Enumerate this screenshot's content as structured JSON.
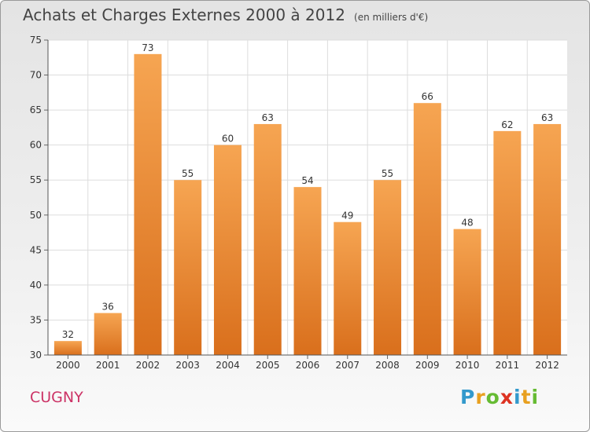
{
  "title": "Achats et Charges Externes 2000 à 2012",
  "unit_label": "(en milliers d'€)",
  "commune": "CUGNY",
  "brand": {
    "letters": [
      "P",
      "r",
      "o",
      "x",
      "i",
      "t",
      "i"
    ],
    "colors": [
      "#3399cc",
      "#e8a020",
      "#66bb33",
      "#dd3322",
      "#3399cc",
      "#e8a020",
      "#66bb33"
    ]
  },
  "chart_data": {
    "type": "bar",
    "categories": [
      "2000",
      "2001",
      "2002",
      "2003",
      "2004",
      "2005",
      "2006",
      "2007",
      "2008",
      "2009",
      "2010",
      "2011",
      "2012"
    ],
    "values": [
      32,
      36,
      73,
      55,
      60,
      63,
      54,
      49,
      55,
      66,
      48,
      62,
      63
    ],
    "ylim": [
      30,
      75
    ],
    "yticks": [
      30,
      35,
      40,
      45,
      50,
      55,
      60,
      65,
      70,
      75
    ],
    "grid": true,
    "bar_color": "#e8852a",
    "title": "Achats et Charges Externes 2000 à 2012",
    "xlabel": "",
    "ylabel": ""
  }
}
